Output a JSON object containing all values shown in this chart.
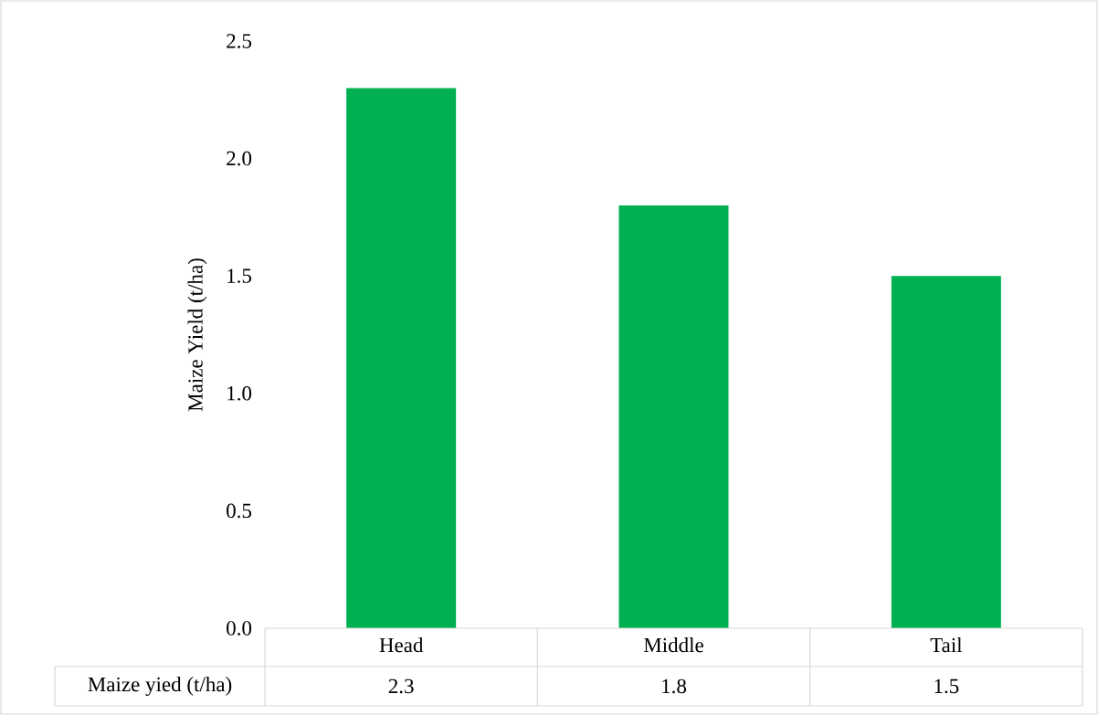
{
  "chart_data": {
    "type": "bar",
    "ylabel": "Maize Yield (t/ha)",
    "categories": [
      "Head",
      "Middle",
      "Tail"
    ],
    "series": [
      {
        "name": "Maize yied (t/ha)",
        "color": "#00b050",
        "values": [
          2.3,
          1.8,
          1.5
        ],
        "value_labels": [
          "2.3",
          "1.8",
          "1.5"
        ]
      }
    ],
    "ylim": [
      0,
      2.5
    ],
    "yticks": [
      {
        "value": 0,
        "label": "0.0"
      },
      {
        "value": 0.5,
        "label": "0.5"
      },
      {
        "value": 1,
        "label": "1.0"
      },
      {
        "value": 1.5,
        "label": "1.5"
      },
      {
        "value": 2,
        "label": "2.0"
      },
      {
        "value": 2.5,
        "label": "2.5"
      }
    ]
  }
}
